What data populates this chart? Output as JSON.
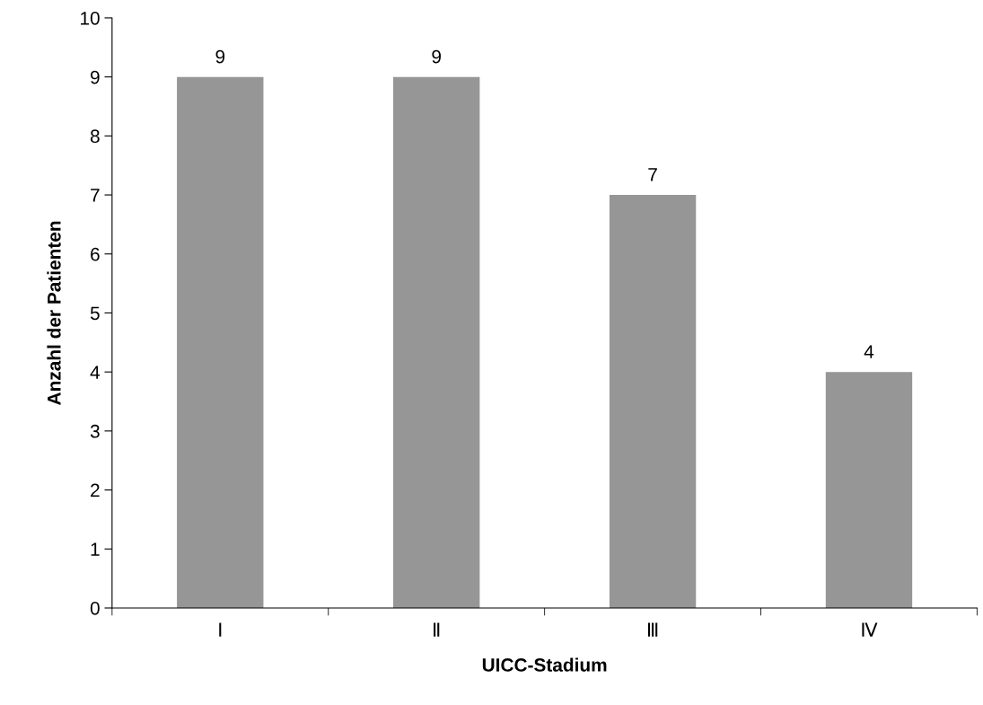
{
  "chart_data": {
    "type": "bar",
    "xlabel": "UICC-Stadium",
    "ylabel": "Anzahl der Patienten",
    "categories": [
      "Ⅰ",
      "Ⅱ",
      "Ⅲ",
      "Ⅳ"
    ],
    "values": [
      9,
      9,
      7,
      4
    ],
    "color": "#969696",
    "ylim": [
      0,
      10
    ],
    "yticks": [
      0,
      1,
      2,
      3,
      4,
      5,
      6,
      7,
      8,
      9,
      10
    ],
    "data_labels": true,
    "grid": false,
    "legend": false
  }
}
